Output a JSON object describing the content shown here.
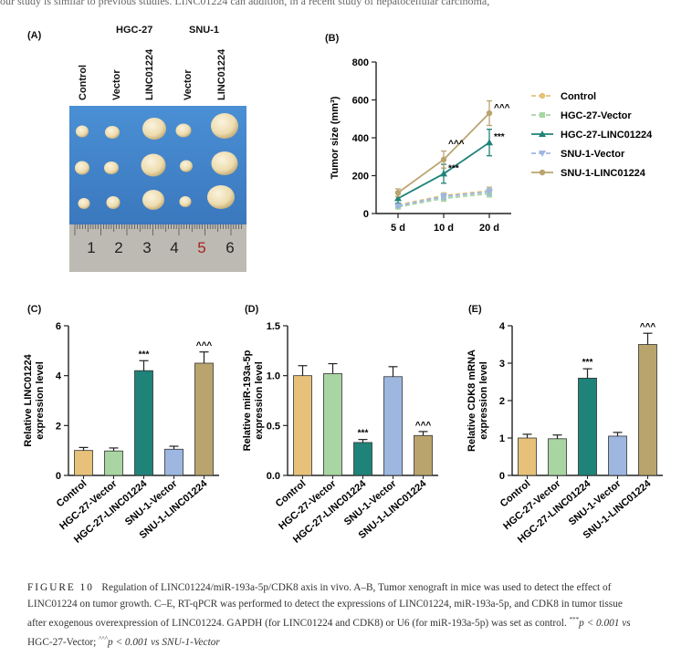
{
  "top_text": "our study is similar to previous studies.   LINC01224 can        addition, in a recent study of hepatocellular carcinoma,",
  "panel_labels": {
    "a": "(A)",
    "b": "(B)",
    "c": "(C)",
    "d": "(D)",
    "e": "(E)"
  },
  "panel_a": {
    "groups": [
      "HGC-27",
      "SNU-1"
    ],
    "columns": [
      "Control",
      "Vector",
      "LINC01224",
      "Vector",
      "LINC01224"
    ],
    "ruler_numbers": [
      "1",
      "2",
      "3",
      "4",
      "5",
      "6"
    ]
  },
  "caption": {
    "figure_label": "FIGURE 10",
    "line1": "Regulation of LINC01224/miR-193a-5p/CDK8 axis in vivo. A–B, Tumor xenograft in mice was used to detect the effect of",
    "line2": "LINC01224 on tumor growth. C–E, RT-qPCR was performed to detect the expressions of LINC01224, miR-193a-5p, and CDK8 in tumor tissue",
    "line3": "after exogenous overexpression of LINC01224. GAPDH (for LINC01224 and CDK8) or U6 (for miR-193a-5p) was set as control.",
    "line3_tail": "p < 0.001 vs",
    "line4": "HGC-27-Vector;",
    "line4_tail": "p < 0.001 vs SNU-1-Vector",
    "sig1": "***",
    "sig2": "^^^"
  },
  "chart_data": [
    {
      "id": "B",
      "type": "line",
      "ylabel": "Tumor size (mm³)",
      "categories": [
        "5 d",
        "10 d",
        "20 d"
      ],
      "ylim": [
        0,
        800
      ],
      "yticks": [
        0,
        200,
        400,
        600,
        800
      ],
      "series": [
        {
          "name": "Control",
          "values": [
            45,
            95,
            120
          ],
          "err": [
            8,
            15,
            20
          ],
          "color": "#e7c17a",
          "dash": true,
          "marker": "circle"
        },
        {
          "name": "HGC-27-Vector",
          "values": [
            35,
            80,
            105
          ],
          "err": [
            8,
            15,
            18
          ],
          "color": "#a8d5a2",
          "dash": true,
          "marker": "square"
        },
        {
          "name": "HGC-27-LINC01224",
          "values": [
            80,
            210,
            375
          ],
          "err": [
            25,
            50,
            70
          ],
          "color": "#1f8379",
          "dash": false,
          "marker": "triangle"
        },
        {
          "name": "SNU-1-Vector",
          "values": [
            40,
            90,
            115
          ],
          "err": [
            8,
            15,
            20
          ],
          "color": "#9db7e0",
          "dash": true,
          "marker": "triangle-down"
        },
        {
          "name": "SNU-1-LINC01224",
          "values": [
            110,
            285,
            530
          ],
          "err": [
            20,
            45,
            65
          ],
          "color": "#b9a46e",
          "dash": false,
          "marker": "circle"
        }
      ],
      "annotations": [
        {
          "x": "10 d",
          "y": 340,
          "text": "^^^"
        },
        {
          "x": "10 d",
          "y": 210,
          "text": "***"
        },
        {
          "x": "20 d",
          "y": 530,
          "text": "^^^"
        },
        {
          "x": "20 d",
          "y": 375,
          "text": "***"
        }
      ]
    },
    {
      "id": "C",
      "type": "bar",
      "ylabel": [
        "Relative LINC01224",
        "expression level"
      ],
      "categories": [
        "Control",
        "HGC-27-Vector",
        "HGC-27-LINC01224",
        "SNU-1-Vector",
        "SNU-1-LINC01224"
      ],
      "values": [
        1.0,
        0.98,
        4.2,
        1.05,
        4.5
      ],
      "err": [
        0.12,
        0.12,
        0.4,
        0.12,
        0.45
      ],
      "sig": [
        "",
        "",
        "***",
        "",
        "^^^"
      ],
      "ylim": [
        0,
        6
      ],
      "yticks": [
        0,
        2,
        4,
        6
      ]
    },
    {
      "id": "D",
      "type": "bar",
      "ylabel": [
        "Relative miR-193a-5p",
        "expression level"
      ],
      "categories": [
        "Control",
        "HGC-27-Vector",
        "HGC-27-LINC01224",
        "SNU-1-Vector",
        "SNU-1-LINC01224"
      ],
      "values": [
        1.0,
        1.02,
        0.33,
        0.99,
        0.4
      ],
      "err": [
        0.1,
        0.1,
        0.03,
        0.1,
        0.04
      ],
      "sig": [
        "",
        "",
        "***",
        "",
        "^^^"
      ],
      "ylim": [
        0,
        1.5
      ],
      "yticks": [
        0.0,
        0.5,
        1.0,
        1.5
      ]
    },
    {
      "id": "E",
      "type": "bar",
      "ylabel": [
        "Relative CDK8 mRNA",
        "expression level"
      ],
      "categories": [
        "Control",
        "HGC-27-Vector",
        "HGC-27-LINC01224",
        "SNU-1-Vector",
        "SNU-1-LINC01224"
      ],
      "values": [
        1.0,
        0.98,
        2.6,
        1.05,
        3.5
      ],
      "err": [
        0.1,
        0.1,
        0.25,
        0.1,
        0.3
      ],
      "sig": [
        "",
        "",
        "***",
        "",
        "^^^"
      ],
      "ylim": [
        0,
        4
      ],
      "yticks": [
        0,
        1,
        2,
        3,
        4
      ]
    }
  ],
  "bar_colors": [
    "#e7c17a",
    "#a8d5a2",
    "#1f8379",
    "#9db7e0",
    "#b9a46e"
  ]
}
